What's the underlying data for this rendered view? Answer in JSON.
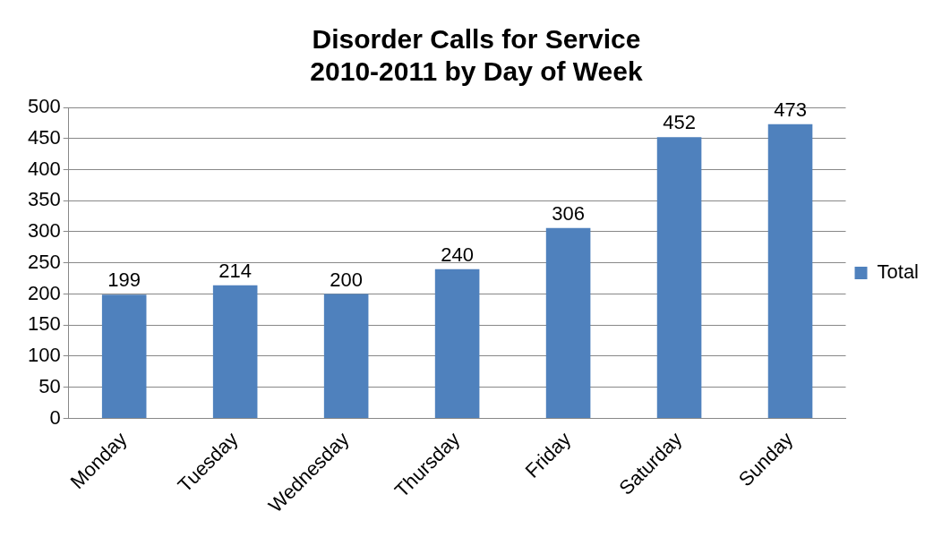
{
  "chart_data": {
    "type": "bar",
    "title": "Disorder Calls for Service\n2010-2011 by Day of Week",
    "categories": [
      "Monday",
      "Tuesday",
      "Wednesday",
      "Thursday",
      "Friday",
      "Saturday",
      "Sunday"
    ],
    "series": [
      {
        "name": "Total",
        "color": "#4f81bd",
        "values": [
          199,
          214,
          200,
          240,
          306,
          452,
          473
        ]
      }
    ],
    "ylim": [
      0,
      500
    ],
    "yticks": [
      0,
      50,
      100,
      150,
      200,
      250,
      300,
      350,
      400,
      450,
      500
    ],
    "grid": "y",
    "legend": "right",
    "data_labels": true
  }
}
